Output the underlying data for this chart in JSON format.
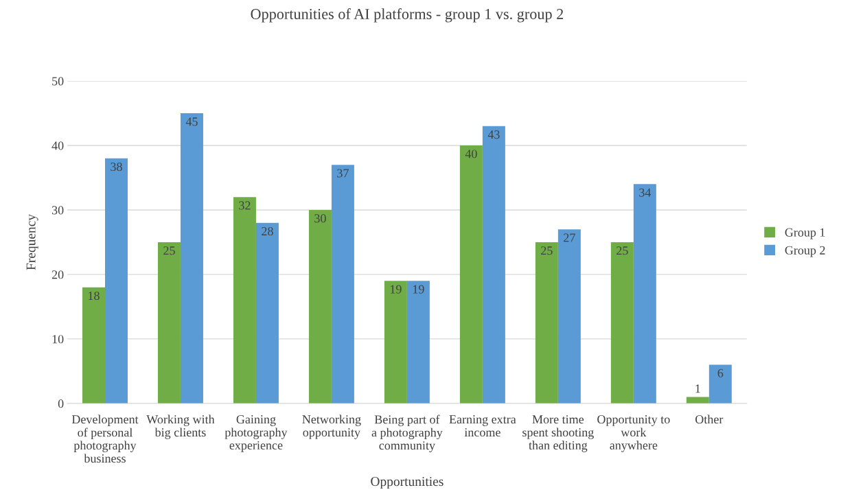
{
  "chart_data": {
    "type": "bar",
    "title": "Opportunities of AI platforms - group 1 vs. group 2",
    "xlabel": "Opportunities",
    "ylabel": "Frequency",
    "categories": [
      "Development\nof personal\nphotography\nbusiness",
      "Working with\nbig clients",
      "Gaining\nphotography\nexperience",
      "Networking\nopportunity",
      "Being part of\na photography\ncommunity",
      "Earning extra\nincome",
      "More time\nspent shooting\nthan editing",
      "Opportunity to\nwork\nanywhere",
      "Other"
    ],
    "series": [
      {
        "name": "Group 1",
        "color": "#70ad47",
        "values": [
          18,
          25,
          32,
          30,
          19,
          40,
          25,
          25,
          1
        ]
      },
      {
        "name": "Group 2",
        "color": "#5b9bd5",
        "values": [
          38,
          45,
          28,
          37,
          19,
          43,
          27,
          34,
          6
        ]
      }
    ],
    "ylim": [
      0,
      50
    ],
    "yticks": [
      0,
      10,
      20,
      30,
      40,
      50
    ],
    "grid": "y",
    "legend": "right",
    "data_labels": true
  }
}
